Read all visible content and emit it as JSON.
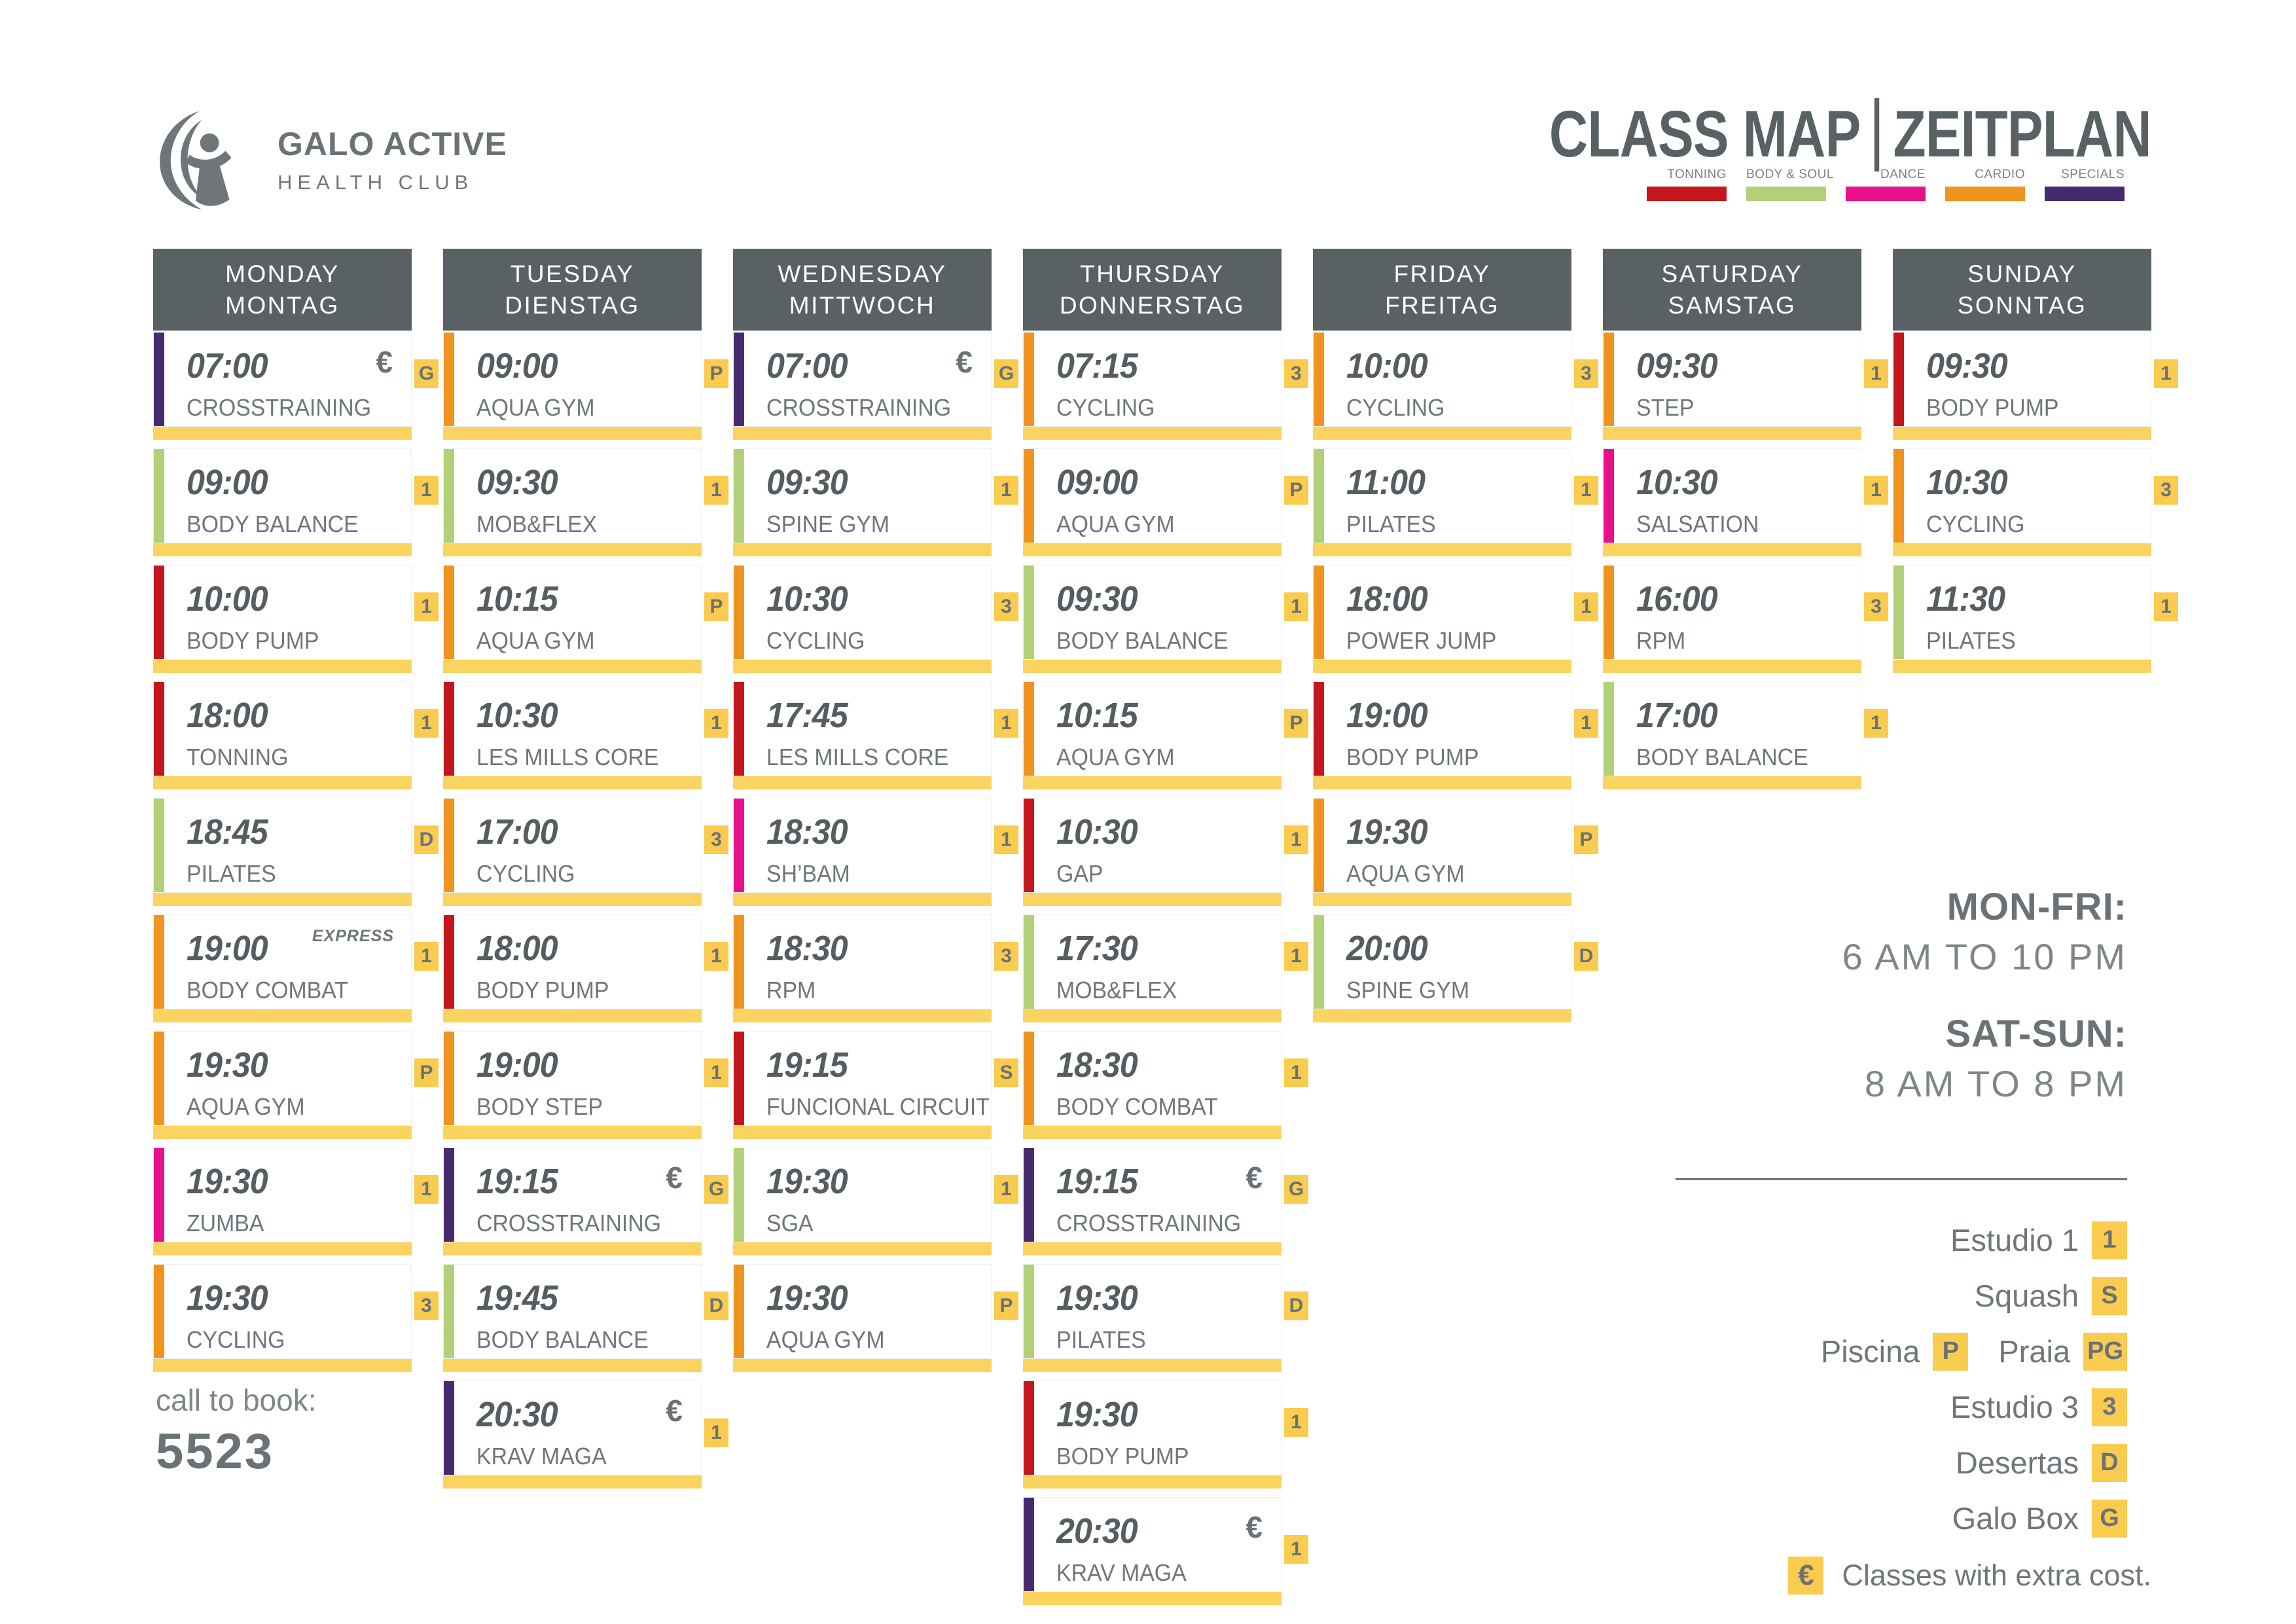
{
  "brand": {
    "name": "GALO ACTIVE",
    "tagline": "HEALTH CLUB"
  },
  "title": {
    "part1": "CLASS MAP",
    "separator": "|",
    "part2": "ZEITPLAN"
  },
  "colors": {
    "header_gray": "#5A6164",
    "badge_yellow": "#F9CB4E",
    "bar_yellow": "#FBD35F",
    "text_gray": "#6F767A"
  },
  "categories": [
    {
      "id": "tonning",
      "label": "TONNING",
      "color": "#C4161C"
    },
    {
      "id": "body_soul",
      "label": "BODY & SOUL",
      "color": "#B2D077"
    },
    {
      "id": "dance",
      "label": "DANCE",
      "color": "#E8118B"
    },
    {
      "id": "cardio",
      "label": "CARDIO",
      "color": "#F0941F"
    },
    {
      "id": "specials",
      "label": "SPECIALS",
      "color": "#472A6E"
    }
  ],
  "days": [
    {
      "name_en": "MONDAY",
      "name_de": "MONTAG",
      "classes": [
        {
          "time": "07:00",
          "name": "CROSSTRAINING",
          "category": "specials",
          "room": "G",
          "extra_cost": true
        },
        {
          "time": "09:00",
          "name": "BODY BALANCE",
          "category": "body_soul",
          "room": "1"
        },
        {
          "time": "10:00",
          "name": "BODY PUMP",
          "category": "tonning",
          "room": "1"
        },
        {
          "time": "18:00",
          "name": "TONNING",
          "category": "tonning",
          "room": "1"
        },
        {
          "time": "18:45",
          "name": "PILATES",
          "category": "body_soul",
          "room": "D"
        },
        {
          "time": "19:00",
          "name": "BODY COMBAT",
          "category": "cardio",
          "room": "1",
          "note": "EXPRESS"
        },
        {
          "time": "19:30",
          "name": "AQUA GYM",
          "category": "cardio",
          "room": "P"
        },
        {
          "time": "19:30",
          "name": "ZUMBA",
          "category": "dance",
          "room": "1"
        },
        {
          "time": "19:30",
          "name": "CYCLING",
          "category": "cardio",
          "room": "3"
        }
      ]
    },
    {
      "name_en": "TUESDAY",
      "name_de": "DIENSTAG",
      "classes": [
        {
          "time": "09:00",
          "name": "AQUA GYM",
          "category": "cardio",
          "room": "P"
        },
        {
          "time": "09:30",
          "name": "MOB&FLEX",
          "category": "body_soul",
          "room": "1"
        },
        {
          "time": "10:15",
          "name": "AQUA GYM",
          "category": "cardio",
          "room": "P"
        },
        {
          "time": "10:30",
          "name": "LES MILLS CORE",
          "category": "tonning",
          "room": "1"
        },
        {
          "time": "17:00",
          "name": "CYCLING",
          "category": "cardio",
          "room": "3"
        },
        {
          "time": "18:00",
          "name": "BODY PUMP",
          "category": "tonning",
          "room": "1"
        },
        {
          "time": "19:00",
          "name": "BODY STEP",
          "category": "cardio",
          "room": "1"
        },
        {
          "time": "19:15",
          "name": "CROSSTRAINING",
          "category": "specials",
          "room": "G",
          "extra_cost": true
        },
        {
          "time": "19:45",
          "name": "BODY BALANCE",
          "category": "body_soul",
          "room": "D"
        },
        {
          "time": "20:30",
          "name": "KRAV MAGA",
          "category": "specials",
          "room": "1",
          "extra_cost": true,
          "badge_low": true
        }
      ]
    },
    {
      "name_en": "WEDNESDAY",
      "name_de": "MITTWOCH",
      "classes": [
        {
          "time": "07:00",
          "name": "CROSSTRAINING",
          "category": "specials",
          "room": "G",
          "extra_cost": true
        },
        {
          "time": "09:30",
          "name": "SPINE GYM",
          "category": "body_soul",
          "room": "1"
        },
        {
          "time": "10:30",
          "name": "CYCLING",
          "category": "cardio",
          "room": "3"
        },
        {
          "time": "17:45",
          "name": "LES MILLS CORE",
          "category": "tonning",
          "room": "1"
        },
        {
          "time": "18:30",
          "name": "SH’BAM",
          "category": "dance",
          "room": "1"
        },
        {
          "time": "18:30",
          "name": "RPM",
          "category": "cardio",
          "room": "3"
        },
        {
          "time": "19:15",
          "name": "FUNCIONAL CIRCUIT",
          "category": "tonning",
          "room": "S"
        },
        {
          "time": "19:30",
          "name": "SGA",
          "category": "body_soul",
          "room": "1"
        },
        {
          "time": "19:30",
          "name": "AQUA GYM",
          "category": "cardio",
          "room": "P"
        }
      ]
    },
    {
      "name_en": "THURSDAY",
      "name_de": "DONNERSTAG",
      "classes": [
        {
          "time": "07:15",
          "name": "CYCLING",
          "category": "cardio",
          "room": "3"
        },
        {
          "time": "09:00",
          "name": "AQUA GYM",
          "category": "cardio",
          "room": "P"
        },
        {
          "time": "09:30",
          "name": "BODY BALANCE",
          "category": "body_soul",
          "room": "1"
        },
        {
          "time": "10:15",
          "name": "AQUA GYM",
          "category": "cardio",
          "room": "P"
        },
        {
          "time": "10:30",
          "name": "GAP",
          "category": "tonning",
          "room": "1"
        },
        {
          "time": "17:30",
          "name": "MOB&FLEX",
          "category": "body_soul",
          "room": "1"
        },
        {
          "time": "18:30",
          "name": "BODY COMBAT",
          "category": "cardio",
          "room": "1"
        },
        {
          "time": "19:15",
          "name": "CROSSTRAINING",
          "category": "specials",
          "room": "G",
          "extra_cost": true
        },
        {
          "time": "19:30",
          "name": "PILATES",
          "category": "body_soul",
          "room": "D"
        },
        {
          "time": "19:30",
          "name": "BODY PUMP",
          "category": "tonning",
          "room": "1"
        },
        {
          "time": "20:30",
          "name": "KRAV MAGA",
          "category": "specials",
          "room": "1",
          "extra_cost": true,
          "badge_low": true
        }
      ]
    },
    {
      "name_en": "FRIDAY",
      "name_de": "FREITAG",
      "classes": [
        {
          "time": "10:00",
          "name": "CYCLING",
          "category": "cardio",
          "room": "3"
        },
        {
          "time": "11:00",
          "name": "PILATES",
          "category": "body_soul",
          "room": "1"
        },
        {
          "time": "18:00",
          "name": "POWER JUMP",
          "category": "cardio",
          "room": "1"
        },
        {
          "time": "19:00",
          "name": "BODY PUMP",
          "category": "tonning",
          "room": "1"
        },
        {
          "time": "19:30",
          "name": "AQUA GYM",
          "category": "cardio",
          "room": "P"
        },
        {
          "time": "20:00",
          "name": "SPINE GYM",
          "category": "body_soul",
          "room": "D"
        }
      ]
    },
    {
      "name_en": "SATURDAY",
      "name_de": "SAMSTAG",
      "classes": [
        {
          "time": "09:30",
          "name": "STEP",
          "category": "cardio",
          "room": "1"
        },
        {
          "time": "10:30",
          "name": "SALSATION",
          "category": "dance",
          "room": "1"
        },
        {
          "time": "16:00",
          "name": "RPM",
          "category": "cardio",
          "room": "3"
        },
        {
          "time": "17:00",
          "name": "BODY BALANCE",
          "category": "body_soul",
          "room": "1"
        }
      ]
    },
    {
      "name_en": "SUNDAY",
      "name_de": "SONNTAG",
      "classes": [
        {
          "time": "09:30",
          "name": "BODY PUMP",
          "category": "tonning",
          "room": "1"
        },
        {
          "time": "10:30",
          "name": "CYCLING",
          "category": "cardio",
          "room": "3"
        },
        {
          "time": "11:30",
          "name": "PILATES",
          "category": "body_soul",
          "room": "1"
        }
      ]
    }
  ],
  "hours": [
    {
      "label": "MON-FRI:",
      "value": "6 AM TO 10 PM"
    },
    {
      "label": "SAT-SUN:",
      "value": "8 AM TO 8 PM"
    }
  ],
  "rooms_legend_rows": [
    [
      {
        "label": "Estudio 1",
        "badge": "1"
      }
    ],
    [
      {
        "label": "Squash",
        "badge": "S"
      }
    ],
    [
      {
        "label": "Piscina",
        "badge": "P"
      },
      {
        "label": "Praia",
        "badge": "PG"
      }
    ],
    [
      {
        "label": "Estudio 3",
        "badge": "3"
      }
    ],
    [
      {
        "label": "Desertas",
        "badge": "D"
      }
    ],
    [
      {
        "label": "Galo Box",
        "badge": "G"
      }
    ]
  ],
  "extra_cost_note": {
    "symbol": "€",
    "text": "Classes with extra cost."
  },
  "booking": {
    "label": "call to book:",
    "phone": "5523"
  }
}
